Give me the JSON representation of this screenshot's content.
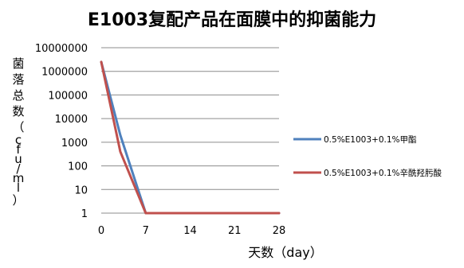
{
  "chart_data": {
    "type": "line",
    "title": "E1003复配产品在面膜中的抑菌能力",
    "xlabel": "天数（day）",
    "ylabel": "菌落总数（cfu/ml）",
    "x": [
      0,
      3,
      7,
      14,
      21,
      28
    ],
    "x_ticks": [
      0,
      7,
      14,
      21,
      28
    ],
    "x_tick_labels": [
      "0",
      "7",
      "14",
      "21",
      "28"
    ],
    "xlim": [
      0,
      28
    ],
    "y_scale": "log",
    "ylim": [
      1,
      10000000
    ],
    "y_ticks": [
      1,
      10,
      100,
      1000,
      10000,
      100000,
      1000000,
      10000000
    ],
    "y_tick_labels": [
      "1",
      "10",
      "100",
      "1000",
      "10000",
      "100000",
      "1000000",
      "10000000"
    ],
    "grid": true,
    "legend_position": "right",
    "series": [
      {
        "name": "0.5%E1003+0.1%甲酯",
        "color": "#4f81bd",
        "values": [
          2500000,
          2000,
          1,
          1,
          1,
          1
        ]
      },
      {
        "name": "0.5%E1003+0.1%辛酰羟肟酸",
        "color": "#c0504d",
        "values": [
          2500000,
          400,
          1,
          1,
          1,
          1
        ]
      }
    ]
  }
}
